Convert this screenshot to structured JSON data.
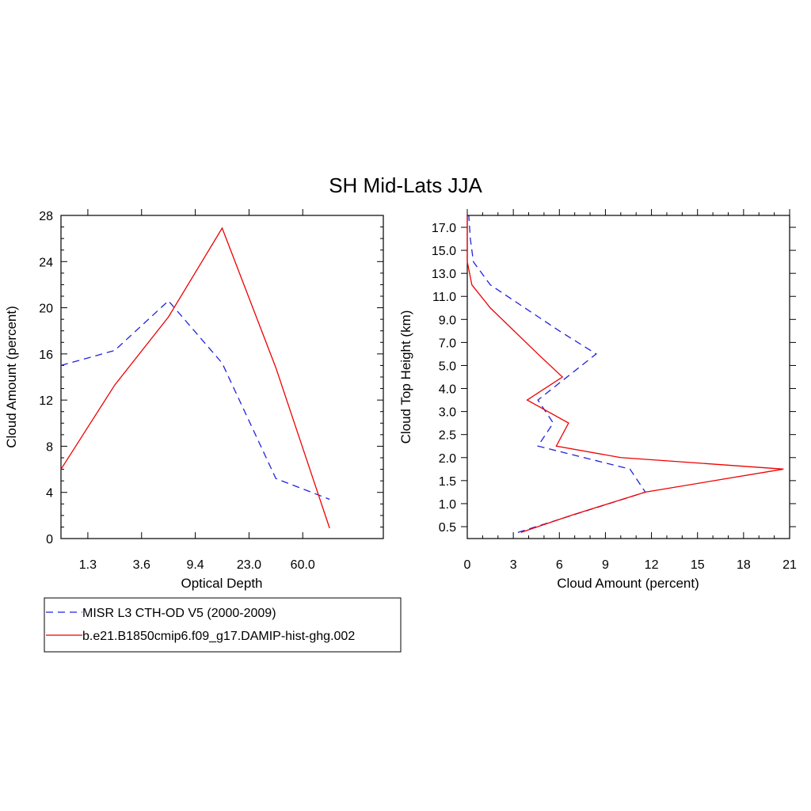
{
  "title": "SH Mid-Lats JJA",
  "colors": {
    "obs": "#2222dd",
    "model": "#ee0000"
  },
  "legend": {
    "entries": [
      {
        "label": "MISR L3 CTH-OD V5 (2000-2009)",
        "color": "#2222dd",
        "dash": true
      },
      {
        "label": "b.e21.B1850cmip6.f09_g17.DAMIP-hist-ghg.002",
        "color": "#ee0000",
        "dash": false
      }
    ]
  },
  "chart_data": [
    {
      "type": "line",
      "xlabel": "Optical Depth",
      "ylabel": "Cloud Amount (percent)",
      "x_index": [
        0,
        1,
        2,
        3,
        4,
        5,
        6
      ],
      "x_tick_labels": [
        "1.3",
        "3.6",
        "9.4",
        "23.0",
        "60.0"
      ],
      "x_tick_index": [
        0.5,
        1.5,
        2.5,
        3.5,
        4.5
      ],
      "ylim": [
        0,
        28
      ],
      "y_ticks": [
        "0",
        "4",
        "8",
        "12",
        "16",
        "20",
        "24",
        "28"
      ],
      "series": [
        {
          "name": "MISR L3 CTH-OD V5 (2000-2009)",
          "values": [
            15.0,
            16.3,
            20.6,
            15.2,
            5.2,
            3.4
          ]
        },
        {
          "name": "b.e21.B1850cmip6.f09_g17.DAMIP-hist-ghg.002",
          "values": [
            6.0,
            13.3,
            19.2,
            26.9,
            14.8,
            0.9
          ]
        }
      ],
      "series_x": [
        0,
        1,
        2,
        3,
        4,
        5
      ]
    },
    {
      "type": "line",
      "xlabel": "Cloud Amount (percent)",
      "ylabel": "Cloud Top Height (km)",
      "xlim": [
        0,
        21
      ],
      "x_ticks": [
        "0",
        "3",
        "6",
        "9",
        "12",
        "15",
        "18",
        "21"
      ],
      "y_tick_labels": [
        "0.5",
        "1.0",
        "1.5",
        "2.0",
        "2.5",
        "3.0",
        "4.0",
        "5.0",
        "7.0",
        "9.0",
        "11.0",
        "13.0",
        "15.0",
        "17.0"
      ],
      "series": [
        {
          "name": "MISR L3 CTH-OD V5 (2000-2009)",
          "values": [
            3.3,
            11.6,
            10.6,
            4.6,
            5.6,
            4.6,
            8.4,
            6.0,
            1.5,
            0.4,
            0.2,
            0.1
          ]
        },
        {
          "name": "b.e21.B1850cmip6.f09_g17.DAMIP-hist-ghg.002",
          "values": [
            3.5,
            6.8,
            11.6,
            20.6,
            10.0,
            5.8,
            6.6,
            3.9,
            6.2,
            4.6,
            1.5,
            0.3,
            0.0,
            0.0
          ]
        }
      ],
      "series_y_index": [
        [
          -0.25,
          1.5,
          2.5,
          3.5,
          4.5,
          5.5,
          7.5,
          8.5,
          10.5,
          11.5,
          12.5,
          13.5
        ],
        [
          -0.25,
          0.5,
          1.5,
          2.5,
          3.0,
          3.5,
          4.5,
          5.5,
          6.5,
          7.5,
          9.5,
          10.5,
          11.5,
          13.5
        ]
      ]
    }
  ]
}
